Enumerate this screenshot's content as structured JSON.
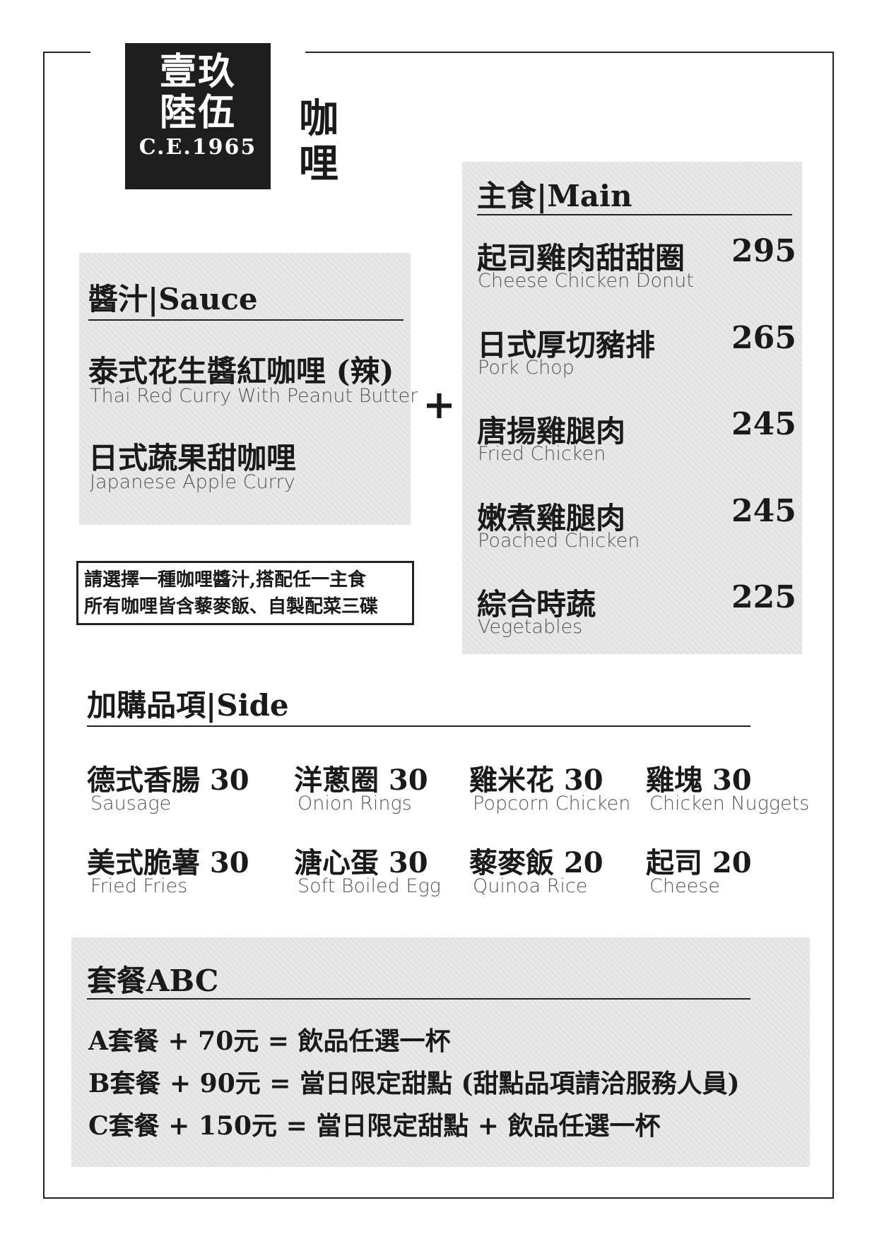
{
  "logo": {
    "line1": "壹玖",
    "line2": "陸伍",
    "line3": "C.E.1965"
  },
  "page_title": "咖哩",
  "sauce": {
    "heading": "醬汁|Sauce",
    "items": [
      {
        "zh": "泰式花生醬紅咖哩 (辣)",
        "en": "Thai Red Curry With Peanut Butter"
      },
      {
        "zh": "日式蔬果甜咖哩",
        "en": "Japanese Apple Curry"
      }
    ]
  },
  "plus": "+",
  "note": {
    "line1": "請選擇一種咖哩醬汁,搭配任一主食",
    "line2": "所有咖哩皆含藜麥飯、自製配菜三碟"
  },
  "main": {
    "heading": "主食|Main",
    "items": [
      {
        "zh": "起司雞肉甜甜圈",
        "en": "Cheese Chicken Donut",
        "price": "295"
      },
      {
        "zh": "日式厚切豬排",
        "en": "Pork Chop",
        "price": "265"
      },
      {
        "zh": "唐揚雞腿肉",
        "en": "Fried Chicken",
        "price": "245"
      },
      {
        "zh": "嫩煮雞腿肉",
        "en": "Poached Chicken",
        "price": "245"
      },
      {
        "zh": "綜合時蔬",
        "en": "Vegetables",
        "price": "225"
      }
    ]
  },
  "side": {
    "heading": "加購品項|Side",
    "items": [
      {
        "zh": "德式香腸 30",
        "en": "Sausage"
      },
      {
        "zh": "洋蔥圈 30",
        "en": "Onion Rings"
      },
      {
        "zh": "雞米花 30",
        "en": "Popcorn Chicken"
      },
      {
        "zh": "雞塊 30",
        "en": "Chicken Nuggets"
      },
      {
        "zh": "美式脆薯 30",
        "en": "Fried Fries"
      },
      {
        "zh": "溏心蛋 30",
        "en": "Soft Boiled Egg"
      },
      {
        "zh": "藜麥飯 20",
        "en": "Quinoa Rice"
      },
      {
        "zh": "起司 20",
        "en": "Cheese"
      }
    ]
  },
  "combo": {
    "heading": "套餐ABC",
    "lines": [
      "A套餐 + 70元 = 飲品任選一杯",
      "B套餐 + 90元 = 當日限定甜點 (甜點品項請洽服務人員)",
      "C套餐 + 150元 = 當日限定甜點 + 飲品任選一杯"
    ]
  }
}
